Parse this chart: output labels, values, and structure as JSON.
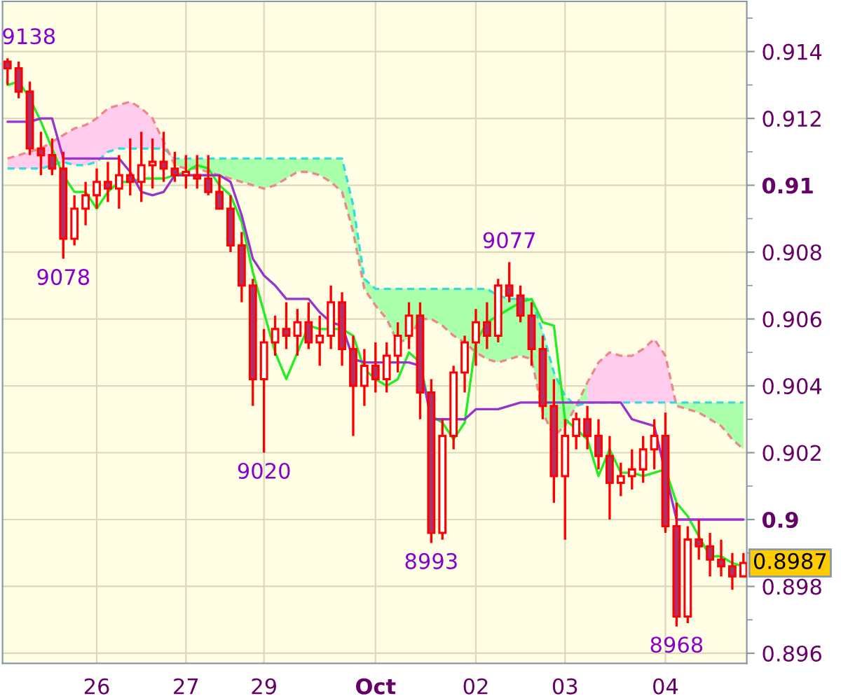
{
  "chart_data": {
    "type": "candlestick",
    "color": "#ff0000",
    "categories": [
      null,
      null,
      null,
      null,
      null,
      null,
      null,
      null,
      "26",
      null,
      null,
      null,
      null,
      null,
      null,
      null,
      "27",
      null,
      null,
      null,
      null,
      null,
      null,
      "29",
      null,
      null,
      null,
      null,
      null,
      null,
      null,
      null,
      null,
      "Oct",
      null,
      null,
      null,
      null,
      null,
      null,
      null,
      null,
      "02",
      null,
      null,
      null,
      null,
      null,
      null,
      null,
      "03",
      null,
      null,
      null,
      null,
      null,
      null,
      null,
      null,
      "04",
      null,
      null,
      null,
      null,
      null,
      null,
      null
    ],
    "ohlc": [
      [
        0.9137,
        0.9138,
        0.913,
        0.9135
      ],
      [
        0.9135,
        0.9137,
        0.9126,
        0.9128
      ],
      [
        0.9128,
        0.9131,
        0.9109,
        0.9111
      ],
      [
        0.9111,
        0.9116,
        0.9103,
        0.9109
      ],
      [
        0.9109,
        0.9114,
        0.9103,
        0.9105
      ],
      [
        0.9105,
        0.911,
        0.9078,
        0.9084
      ],
      [
        0.9084,
        0.9097,
        0.9082,
        0.9093
      ],
      [
        0.9093,
        0.9101,
        0.9088,
        0.9097
      ],
      [
        0.9097,
        0.9105,
        0.9093,
        0.9101
      ],
      [
        0.9101,
        0.9107,
        0.9095,
        0.9099
      ],
      [
        0.9099,
        0.9109,
        0.9093,
        0.9103
      ],
      [
        0.9103,
        0.9114,
        0.9097,
        0.9101
      ],
      [
        0.9101,
        0.9116,
        0.9095,
        0.9106
      ],
      [
        0.9106,
        0.9114,
        0.9099,
        0.9107
      ],
      [
        0.9107,
        0.9116,
        0.9101,
        0.9105
      ],
      [
        0.9105,
        0.911,
        0.9101,
        0.9103
      ],
      [
        0.9103,
        0.9109,
        0.9099,
        0.9104
      ],
      [
        0.9103,
        0.9109,
        0.9099,
        0.9102
      ],
      [
        0.9102,
        0.9109,
        0.9097,
        0.9098
      ],
      [
        0.9098,
        0.9103,
        0.9093,
        0.9093
      ],
      [
        0.9093,
        0.9097,
        0.908,
        0.9082
      ],
      [
        0.9082,
        0.9086,
        0.9065,
        0.907
      ],
      [
        0.907,
        0.9072,
        0.9034,
        0.9042
      ],
      [
        0.9042,
        0.9057,
        0.902,
        0.9053
      ],
      [
        0.9053,
        0.9061,
        0.9049,
        0.9057
      ],
      [
        0.9057,
        0.9065,
        0.9051,
        0.9055
      ],
      [
        0.9055,
        0.9063,
        0.9049,
        0.9059
      ],
      [
        0.9059,
        0.9065,
        0.9051,
        0.9053
      ],
      [
        0.9053,
        0.9061,
        0.9046,
        0.9055
      ],
      [
        0.9055,
        0.907,
        0.9051,
        0.9065
      ],
      [
        0.9065,
        0.9068,
        0.9046,
        0.9051
      ],
      [
        0.9051,
        0.9055,
        0.9025,
        0.904
      ],
      [
        0.904,
        0.9051,
        0.9034,
        0.9046
      ],
      [
        0.9046,
        0.9053,
        0.9038,
        0.9042
      ],
      [
        0.9042,
        0.9053,
        0.9038,
        0.9049
      ],
      [
        0.9049,
        0.9059,
        0.9044,
        0.9055
      ],
      [
        0.9055,
        0.9065,
        0.9051,
        0.9061
      ],
      [
        0.9061,
        0.9065,
        0.903,
        0.9038
      ],
      [
        0.9038,
        0.9042,
        0.8993,
        0.8996
      ],
      [
        0.8996,
        0.903,
        0.8994,
        0.9025
      ],
      [
        0.9025,
        0.9046,
        0.9021,
        0.9044
      ],
      [
        0.9044,
        0.9055,
        0.9038,
        0.9053
      ],
      [
        0.9053,
        0.9063,
        0.9046,
        0.9059
      ],
      [
        0.9059,
        0.9065,
        0.9051,
        0.9055
      ],
      [
        0.9055,
        0.9072,
        0.9053,
        0.907
      ],
      [
        0.907,
        0.9077,
        0.9065,
        0.9067
      ],
      [
        0.9067,
        0.907,
        0.9059,
        0.9061
      ],
      [
        0.9061,
        0.9065,
        0.9046,
        0.9051
      ],
      [
        0.9051,
        0.9055,
        0.903,
        0.9034
      ],
      [
        0.9034,
        0.9042,
        0.9005,
        0.9013
      ],
      [
        0.9013,
        0.903,
        0.8994,
        0.9025
      ],
      [
        0.9025,
        0.9032,
        0.9021,
        0.903
      ],
      [
        0.903,
        0.9034,
        0.9021,
        0.9025
      ],
      [
        0.9025,
        0.903,
        0.9015,
        0.9019
      ],
      [
        0.9019,
        0.9025,
        0.9,
        0.9011
      ],
      [
        0.9011,
        0.9017,
        0.9007,
        0.9013
      ],
      [
        0.9013,
        0.9021,
        0.9009,
        0.9015
      ],
      [
        0.9015,
        0.9025,
        0.9011,
        0.9021
      ],
      [
        0.9021,
        0.903,
        0.9015,
        0.9025
      ],
      [
        0.9025,
        0.9032,
        0.8996,
        0.8998
      ],
      [
        0.8998,
        0.9005,
        0.8968,
        0.8971
      ],
      [
        0.8971,
        0.8998,
        0.8969,
        0.8994
      ],
      [
        0.8994,
        0.9,
        0.8988,
        0.8992
      ],
      [
        0.8992,
        0.8996,
        0.8983,
        0.8988
      ],
      [
        0.8988,
        0.8994,
        0.8983,
        0.8986
      ],
      [
        0.8986,
        0.899,
        0.8979,
        0.8983
      ],
      [
        0.8983,
        0.899,
        0.8983,
        0.8987
      ]
    ],
    "series": [
      {
        "type": "line",
        "color": "#33dddd",
        "line_style": "dashed",
        "values": [
          0.9105,
          0.9105,
          0.9105,
          0.9105,
          0.9106,
          0.9107,
          0.9106,
          0.9106,
          0.9107,
          0.911,
          0.9111,
          0.9111,
          0.9111,
          0.9111,
          0.9111,
          0.9108,
          0.9108,
          0.9108,
          0.9108,
          0.9108,
          0.9108,
          0.9108,
          0.9108,
          0.9108,
          0.9108,
          0.9108,
          0.9108,
          0.9108,
          0.9108,
          0.9108,
          0.9108,
          0.9094,
          0.9072,
          0.9069,
          0.9069,
          0.9069,
          0.9069,
          0.9069,
          0.9069,
          0.9069,
          0.9069,
          0.9069,
          0.9069,
          0.9069,
          0.9067,
          0.9066,
          0.9066,
          0.9066,
          0.9056,
          0.9044,
          0.9037,
          0.9034,
          0.9035,
          0.9035,
          0.9035,
          0.9035,
          0.9035,
          0.9035,
          0.9035,
          0.9035,
          0.9035,
          0.9035,
          0.9035,
          0.9035,
          0.9035,
          0.9035,
          0.9035
        ]
      },
      {
        "type": "line",
        "color": "#ee8888",
        "colors": [
          "#ffccee",
          "#ffccee",
          "#ffccee",
          "#ffccee",
          "#ffccee",
          "#ffccee",
          "#ffccee",
          "#ffccee",
          "#ffccee",
          "#ffccee",
          "#ffccee",
          "#ffccee",
          "#ffccee",
          "#ffccee",
          "#ffccee",
          "#aaffaa",
          "#aaffaa",
          "#aaffaa",
          "#aaffaa",
          "#aaffaa",
          "#aaffaa",
          "#aaffaa",
          "#aaffaa",
          "#aaffaa",
          "#aaffaa",
          "#aaffaa",
          "#aaffaa",
          "#aaffaa",
          "#aaffaa",
          "#aaffaa",
          "#aaffaa",
          "#aaffaa",
          "#aaffaa",
          "#aaffaa",
          "#aaffaa",
          "#aaffaa",
          "#aaffaa",
          "#aaffaa",
          "#aaffaa",
          "#aaffaa",
          "#aaffaa",
          "#aaffaa",
          "#aaffaa",
          "#aaffaa",
          "#aaffaa",
          "#aaffaa",
          "#aaffaa",
          "#aaffaa",
          "#aaffaa",
          "#aaffaa",
          "#aaffaa",
          "#aaffaa",
          "#ffccee",
          "#ffccee",
          "#ffccee",
          "#ffccee",
          "#ffccee",
          "#ffccee",
          "#ffccee",
          "#ffccee",
          "#aaffaa",
          "#aaffaa",
          "#aaffaa",
          "#aaffaa",
          "#aaffaa",
          "#aaffaa",
          "#aaffaa"
        ],
        "line_style": "dashed",
        "values": [
          0.9108,
          0.9109,
          0.911,
          0.9111,
          0.9113,
          0.9115,
          0.9117,
          0.9118,
          0.912,
          0.9123,
          0.9124,
          0.9125,
          0.9123,
          0.912,
          0.9113,
          0.9106,
          0.9105,
          0.9105,
          0.9104,
          0.9103,
          0.9102,
          0.9101,
          0.91,
          0.9099,
          0.91,
          0.9102,
          0.9104,
          0.9104,
          0.9103,
          0.9101,
          0.9098,
          0.9086,
          0.9069,
          0.9064,
          0.906,
          0.9053,
          0.9054,
          0.906,
          0.906,
          0.9058,
          0.9055,
          0.9053,
          0.905,
          0.9048,
          0.9047,
          0.9048,
          0.9049,
          0.9048,
          0.9032,
          0.9025,
          0.9028,
          0.9034,
          0.9041,
          0.9047,
          0.905,
          0.9049,
          0.9049,
          0.9051,
          0.9054,
          0.9049,
          0.9034,
          0.9033,
          0.9032,
          0.903,
          0.9028,
          0.9024,
          0.9021
        ]
      },
      {
        "type": "line",
        "color": "#22ee22",
        "line_style": "solid",
        "values": [
          0.913,
          0.9131,
          0.9126,
          0.9119,
          0.9111,
          0.9103,
          0.9098,
          0.9098,
          0.9093,
          0.9098,
          0.9101,
          0.9101,
          0.9102,
          0.9102,
          0.9102,
          0.9103,
          0.9104,
          0.9106,
          0.9105,
          0.91,
          0.9097,
          0.9089,
          0.9074,
          0.9062,
          0.905,
          0.9042,
          0.905,
          0.9058,
          0.9057,
          0.9057,
          0.9057,
          0.9055,
          0.9045,
          0.9042,
          0.904,
          0.9042,
          0.905,
          0.9047,
          0.9031,
          0.9029,
          0.9024,
          0.9029,
          0.9053,
          0.9059,
          0.9061,
          0.9063,
          0.9065,
          0.9066,
          0.9059,
          0.9058,
          0.903,
          0.9027,
          0.9024,
          0.9013,
          0.9021,
          0.9014,
          0.9014,
          0.9013,
          0.9014,
          0.9015,
          0.9005,
          0.9001,
          0.8995,
          0.8989,
          0.8989,
          0.8987,
          0.8986
        ]
      },
      {
        "type": "line",
        "color": "#9933cc",
        "line_style": "solid",
        "values": [
          0.9119,
          0.9119,
          0.9119,
          0.912,
          0.912,
          0.9108,
          0.9108,
          0.9108,
          0.9108,
          0.9108,
          0.9108,
          0.9104,
          0.9098,
          0.9097,
          0.9098,
          0.9103,
          0.9103,
          0.9103,
          0.9103,
          0.9103,
          0.9101,
          0.9091,
          0.9078,
          0.9073,
          0.907,
          0.9066,
          0.9066,
          0.9066,
          0.9062,
          0.9059,
          0.9058,
          0.9048,
          0.9047,
          0.9047,
          0.9047,
          0.9047,
          0.9047,
          0.9046,
          0.903,
          0.903,
          0.903,
          0.903,
          0.9033,
          0.9033,
          0.9033,
          0.9034,
          0.9035,
          0.9035,
          0.9035,
          0.9035,
          0.9035,
          0.9035,
          0.9035,
          0.9035,
          0.9035,
          0.9035,
          0.903,
          0.9029,
          0.9028,
          null,
          0.9,
          0.9,
          0.9,
          0.9,
          0.9,
          0.9,
          0.9
        ]
      }
    ],
    "ylim": [
      0.8957,
      0.9155
    ],
    "yticks": [
      0.896,
      0.898,
      0.9,
      0.902,
      0.904,
      0.906,
      0.908,
      0.91,
      0.912,
      0.914
    ],
    "grid": true,
    "annotations": [
      "9138",
      {
        "text": "9078",
        "y": 0.9078
      },
      {
        "text": "9020",
        "y": 0.902
      },
      {
        "text": "8993",
        "y": 0.8993
      },
      {
        "text": "9077",
        "y": 0.9077
      },
      {
        "text": "8968",
        "y": 0.8968
      },
      "0.8987"
    ]
  }
}
